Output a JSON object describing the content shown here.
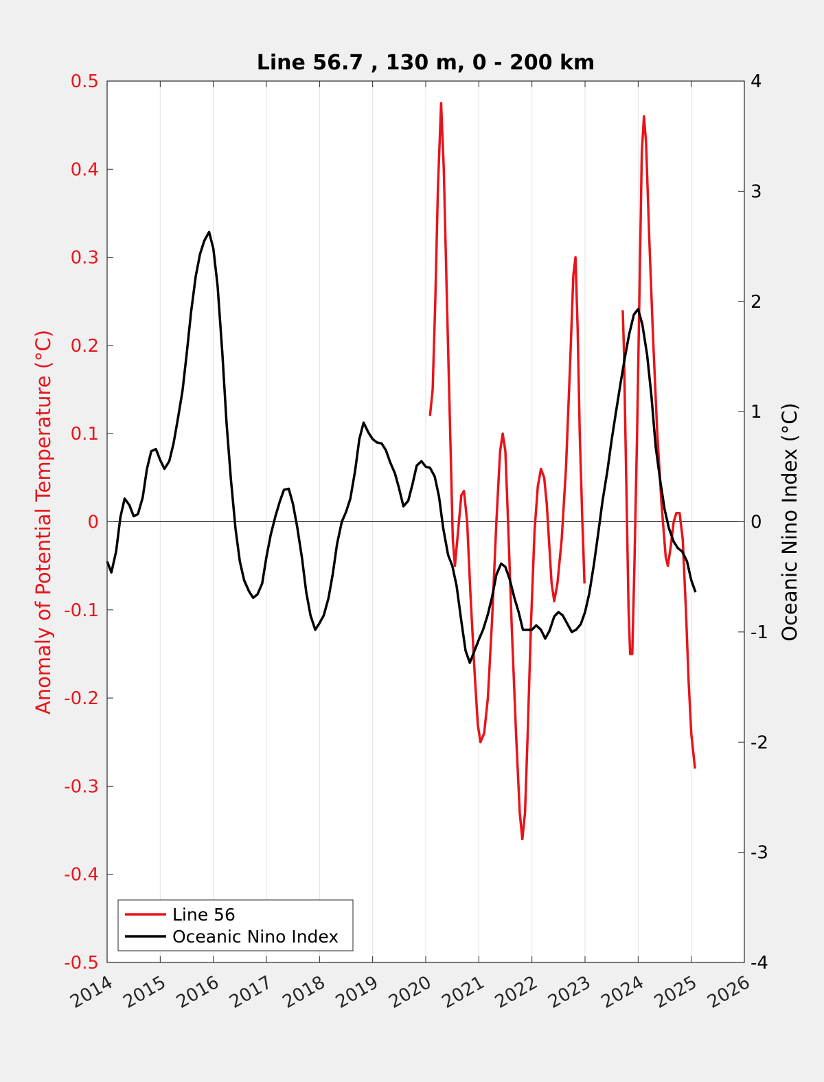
{
  "chart_data": {
    "type": "line",
    "title": "Line 56.7 , 130 m, 0 - 200 km",
    "xlim": [
      2014,
      2026
    ],
    "x_ticks": [
      "2014",
      "2015",
      "2016",
      "2017",
      "2018",
      "2019",
      "2020",
      "2021",
      "2022",
      "2023",
      "2024",
      "2025",
      "2026"
    ],
    "x_tick_values": [
      2014,
      2015,
      2016,
      2017,
      2018,
      2019,
      2020,
      2021,
      2022,
      2023,
      2024,
      2025,
      2026
    ],
    "y_left": {
      "label": "Anomaly of Potential Temperature (°C)",
      "lim": [
        -0.5,
        0.5
      ],
      "ticks": [
        "0.5",
        "0.4",
        "0.3",
        "0.2",
        "0.1",
        "0",
        "-0.1",
        "-0.2",
        "-0.3",
        "-0.4",
        "-0.5"
      ],
      "tick_values": [
        0.5,
        0.4,
        0.3,
        0.2,
        0.1,
        0,
        -0.1,
        -0.2,
        -0.3,
        -0.4,
        -0.5
      ],
      "color": "#e8141b"
    },
    "y_right": {
      "label": "Oceanic Nino Index (°C)",
      "lim": [
        -4,
        4
      ],
      "ticks": [
        "4",
        "3",
        "2",
        "1",
        "0",
        "-1",
        "-2",
        "-3",
        "-4"
      ],
      "tick_values": [
        4,
        3,
        2,
        1,
        0,
        -1,
        -2,
        -3,
        -4
      ],
      "color": "#000000"
    },
    "grid": "x-major",
    "zero_line": true,
    "legend_position": "bottom-left",
    "series": [
      {
        "name": "Line 56",
        "axis": "left",
        "color": "#e8141b",
        "segments": [
          [
            [
              2020.08,
              0.12
            ],
            [
              2020.13,
              0.15
            ],
            [
              2020.18,
              0.25
            ],
            [
              2020.23,
              0.38
            ],
            [
              2020.29,
              0.475
            ],
            [
              2020.34,
              0.4
            ],
            [
              2020.4,
              0.25
            ],
            [
              2020.47,
              0.08
            ],
            [
              2020.51,
              -0.02
            ],
            [
              2020.55,
              -0.05
            ],
            [
              2020.61,
              -0.01
            ],
            [
              2020.67,
              0.03
            ],
            [
              2020.72,
              0.035
            ],
            [
              2020.78,
              0.0
            ],
            [
              2020.84,
              -0.08
            ],
            [
              2020.92,
              -0.17
            ],
            [
              2020.98,
              -0.23
            ],
            [
              2021.03,
              -0.25
            ],
            [
              2021.1,
              -0.24
            ],
            [
              2021.17,
              -0.2
            ],
            [
              2021.25,
              -0.11
            ],
            [
              2021.33,
              0.0
            ],
            [
              2021.4,
              0.08
            ],
            [
              2021.45,
              0.1
            ],
            [
              2021.5,
              0.08
            ],
            [
              2021.55,
              0.0
            ],
            [
              2021.62,
              -0.12
            ],
            [
              2021.7,
              -0.24
            ],
            [
              2021.77,
              -0.33
            ],
            [
              2021.82,
              -0.36
            ],
            [
              2021.87,
              -0.33
            ],
            [
              2021.92,
              -0.24
            ],
            [
              2021.98,
              -0.12
            ],
            [
              2022.05,
              -0.01
            ],
            [
              2022.11,
              0.04
            ],
            [
              2022.17,
              0.06
            ],
            [
              2022.23,
              0.05
            ],
            [
              2022.28,
              0.02
            ],
            [
              2022.33,
              -0.03
            ],
            [
              2022.37,
              -0.07
            ],
            [
              2022.42,
              -0.09
            ],
            [
              2022.48,
              -0.07
            ],
            [
              2022.56,
              -0.02
            ],
            [
              2022.64,
              0.06
            ],
            [
              2022.72,
              0.18
            ],
            [
              2022.78,
              0.28
            ],
            [
              2022.82,
              0.3
            ],
            [
              2022.86,
              0.22
            ],
            [
              2022.9,
              0.1
            ],
            [
              2022.95,
              0.0
            ],
            [
              2022.99,
              -0.07
            ]
          ],
          [
            [
              2023.71,
              0.24
            ],
            [
              2023.73,
              0.2
            ],
            [
              2023.76,
              0.1
            ],
            [
              2023.79,
              0.0
            ],
            [
              2023.82,
              -0.1
            ],
            [
              2023.85,
              -0.15
            ],
            [
              2023.89,
              -0.15
            ],
            [
              2023.93,
              -0.05
            ],
            [
              2023.98,
              0.1
            ],
            [
              2024.03,
              0.28
            ],
            [
              2024.07,
              0.42
            ],
            [
              2024.11,
              0.46
            ],
            [
              2024.15,
              0.43
            ],
            [
              2024.21,
              0.32
            ],
            [
              2024.28,
              0.21
            ],
            [
              2024.36,
              0.1
            ],
            [
              2024.44,
              0.02
            ],
            [
              2024.52,
              -0.04
            ],
            [
              2024.56,
              -0.05
            ],
            [
              2024.61,
              -0.03
            ],
            [
              2024.67,
              0.0
            ],
            [
              2024.72,
              0.01
            ],
            [
              2024.78,
              0.01
            ],
            [
              2024.84,
              -0.02
            ],
            [
              2024.9,
              -0.1
            ],
            [
              2024.95,
              -0.18
            ],
            [
              2025.0,
              -0.24
            ],
            [
              2025.07,
              -0.28
            ]
          ]
        ]
      },
      {
        "name": "Oceanic Nino Index",
        "axis": "right",
        "color": "#000000",
        "segments": [
          [
            [
              2014.0,
              -0.36
            ],
            [
              2014.08,
              -0.46
            ],
            [
              2014.17,
              -0.27
            ],
            [
              2014.25,
              0.04
            ],
            [
              2014.33,
              0.21
            ],
            [
              2014.42,
              0.15
            ],
            [
              2014.5,
              0.05
            ],
            [
              2014.58,
              0.07
            ],
            [
              2014.67,
              0.22
            ],
            [
              2014.75,
              0.48
            ],
            [
              2014.83,
              0.64
            ],
            [
              2014.92,
              0.66
            ],
            [
              2015.0,
              0.56
            ],
            [
              2015.08,
              0.48
            ],
            [
              2015.17,
              0.55
            ],
            [
              2015.25,
              0.71
            ],
            [
              2015.33,
              0.93
            ],
            [
              2015.42,
              1.19
            ],
            [
              2015.5,
              1.53
            ],
            [
              2015.58,
              1.9
            ],
            [
              2015.67,
              2.23
            ],
            [
              2015.75,
              2.43
            ],
            [
              2015.83,
              2.55
            ],
            [
              2015.92,
              2.63
            ],
            [
              2016.0,
              2.48
            ],
            [
              2016.08,
              2.14
            ],
            [
              2016.17,
              1.53
            ],
            [
              2016.25,
              0.89
            ],
            [
              2016.33,
              0.39
            ],
            [
              2016.42,
              -0.07
            ],
            [
              2016.5,
              -0.36
            ],
            [
              2016.58,
              -0.53
            ],
            [
              2016.67,
              -0.63
            ],
            [
              2016.75,
              -0.69
            ],
            [
              2016.83,
              -0.66
            ],
            [
              2016.92,
              -0.56
            ],
            [
              2017.0,
              -0.32
            ],
            [
              2017.08,
              -0.12
            ],
            [
              2017.17,
              0.05
            ],
            [
              2017.25,
              0.18
            ],
            [
              2017.33,
              0.29
            ],
            [
              2017.42,
              0.3
            ],
            [
              2017.5,
              0.16
            ],
            [
              2017.58,
              -0.05
            ],
            [
              2017.67,
              -0.33
            ],
            [
              2017.75,
              -0.64
            ],
            [
              2017.83,
              -0.85
            ],
            [
              2017.92,
              -0.98
            ],
            [
              2018.0,
              -0.92
            ],
            [
              2018.08,
              -0.85
            ],
            [
              2018.17,
              -0.69
            ],
            [
              2018.25,
              -0.47
            ],
            [
              2018.33,
              -0.2
            ],
            [
              2018.42,
              0.0
            ],
            [
              2018.5,
              0.09
            ],
            [
              2018.58,
              0.21
            ],
            [
              2018.67,
              0.46
            ],
            [
              2018.75,
              0.75
            ],
            [
              2018.83,
              0.9
            ],
            [
              2018.92,
              0.81
            ],
            [
              2019.0,
              0.75
            ],
            [
              2019.08,
              0.72
            ],
            [
              2019.17,
              0.71
            ],
            [
              2019.25,
              0.65
            ],
            [
              2019.33,
              0.54
            ],
            [
              2019.42,
              0.44
            ],
            [
              2019.5,
              0.3
            ],
            [
              2019.58,
              0.14
            ],
            [
              2019.67,
              0.19
            ],
            [
              2019.75,
              0.34
            ],
            [
              2019.83,
              0.51
            ],
            [
              2019.92,
              0.55
            ],
            [
              2020.0,
              0.5
            ],
            [
              2020.08,
              0.49
            ],
            [
              2020.17,
              0.41
            ],
            [
              2020.25,
              0.23
            ],
            [
              2020.33,
              -0.06
            ],
            [
              2020.42,
              -0.3
            ],
            [
              2020.5,
              -0.4
            ],
            [
              2020.58,
              -0.58
            ],
            [
              2020.67,
              -0.9
            ],
            [
              2020.75,
              -1.17
            ],
            [
              2020.83,
              -1.28
            ],
            [
              2020.92,
              -1.17
            ],
            [
              2021.0,
              -1.07
            ],
            [
              2021.08,
              -0.98
            ],
            [
              2021.17,
              -0.84
            ],
            [
              2021.25,
              -0.68
            ],
            [
              2021.33,
              -0.48
            ],
            [
              2021.42,
              -0.38
            ],
            [
              2021.5,
              -0.41
            ],
            [
              2021.58,
              -0.52
            ],
            [
              2021.67,
              -0.69
            ],
            [
              2021.75,
              -0.82
            ],
            [
              2021.83,
              -0.98
            ],
            [
              2021.92,
              -0.98
            ],
            [
              2022.0,
              -0.98
            ],
            [
              2022.08,
              -0.94
            ],
            [
              2022.17,
              -0.98
            ],
            [
              2022.25,
              -1.06
            ],
            [
              2022.33,
              -0.99
            ],
            [
              2022.42,
              -0.86
            ],
            [
              2022.5,
              -0.82
            ],
            [
              2022.58,
              -0.85
            ],
            [
              2022.67,
              -0.93
            ],
            [
              2022.75,
              -1.0
            ],
            [
              2022.83,
              -0.98
            ],
            [
              2022.92,
              -0.93
            ],
            [
              2023.0,
              -0.82
            ],
            [
              2023.08,
              -0.65
            ],
            [
              2023.17,
              -0.38
            ],
            [
              2023.25,
              -0.1
            ],
            [
              2023.33,
              0.19
            ],
            [
              2023.42,
              0.46
            ],
            [
              2023.5,
              0.74
            ],
            [
              2023.58,
              0.99
            ],
            [
              2023.67,
              1.26
            ],
            [
              2023.75,
              1.49
            ],
            [
              2023.83,
              1.7
            ],
            [
              2023.92,
              1.88
            ],
            [
              2024.0,
              1.93
            ],
            [
              2024.08,
              1.79
            ],
            [
              2024.17,
              1.51
            ],
            [
              2024.25,
              1.14
            ],
            [
              2024.33,
              0.68
            ],
            [
              2024.42,
              0.36
            ],
            [
              2024.5,
              0.11
            ],
            [
              2024.58,
              -0.06
            ],
            [
              2024.67,
              -0.18
            ],
            [
              2024.75,
              -0.24
            ],
            [
              2024.83,
              -0.27
            ],
            [
              2024.92,
              -0.36
            ],
            [
              2025.0,
              -0.53
            ],
            [
              2025.08,
              -0.64
            ]
          ]
        ]
      }
    ]
  }
}
